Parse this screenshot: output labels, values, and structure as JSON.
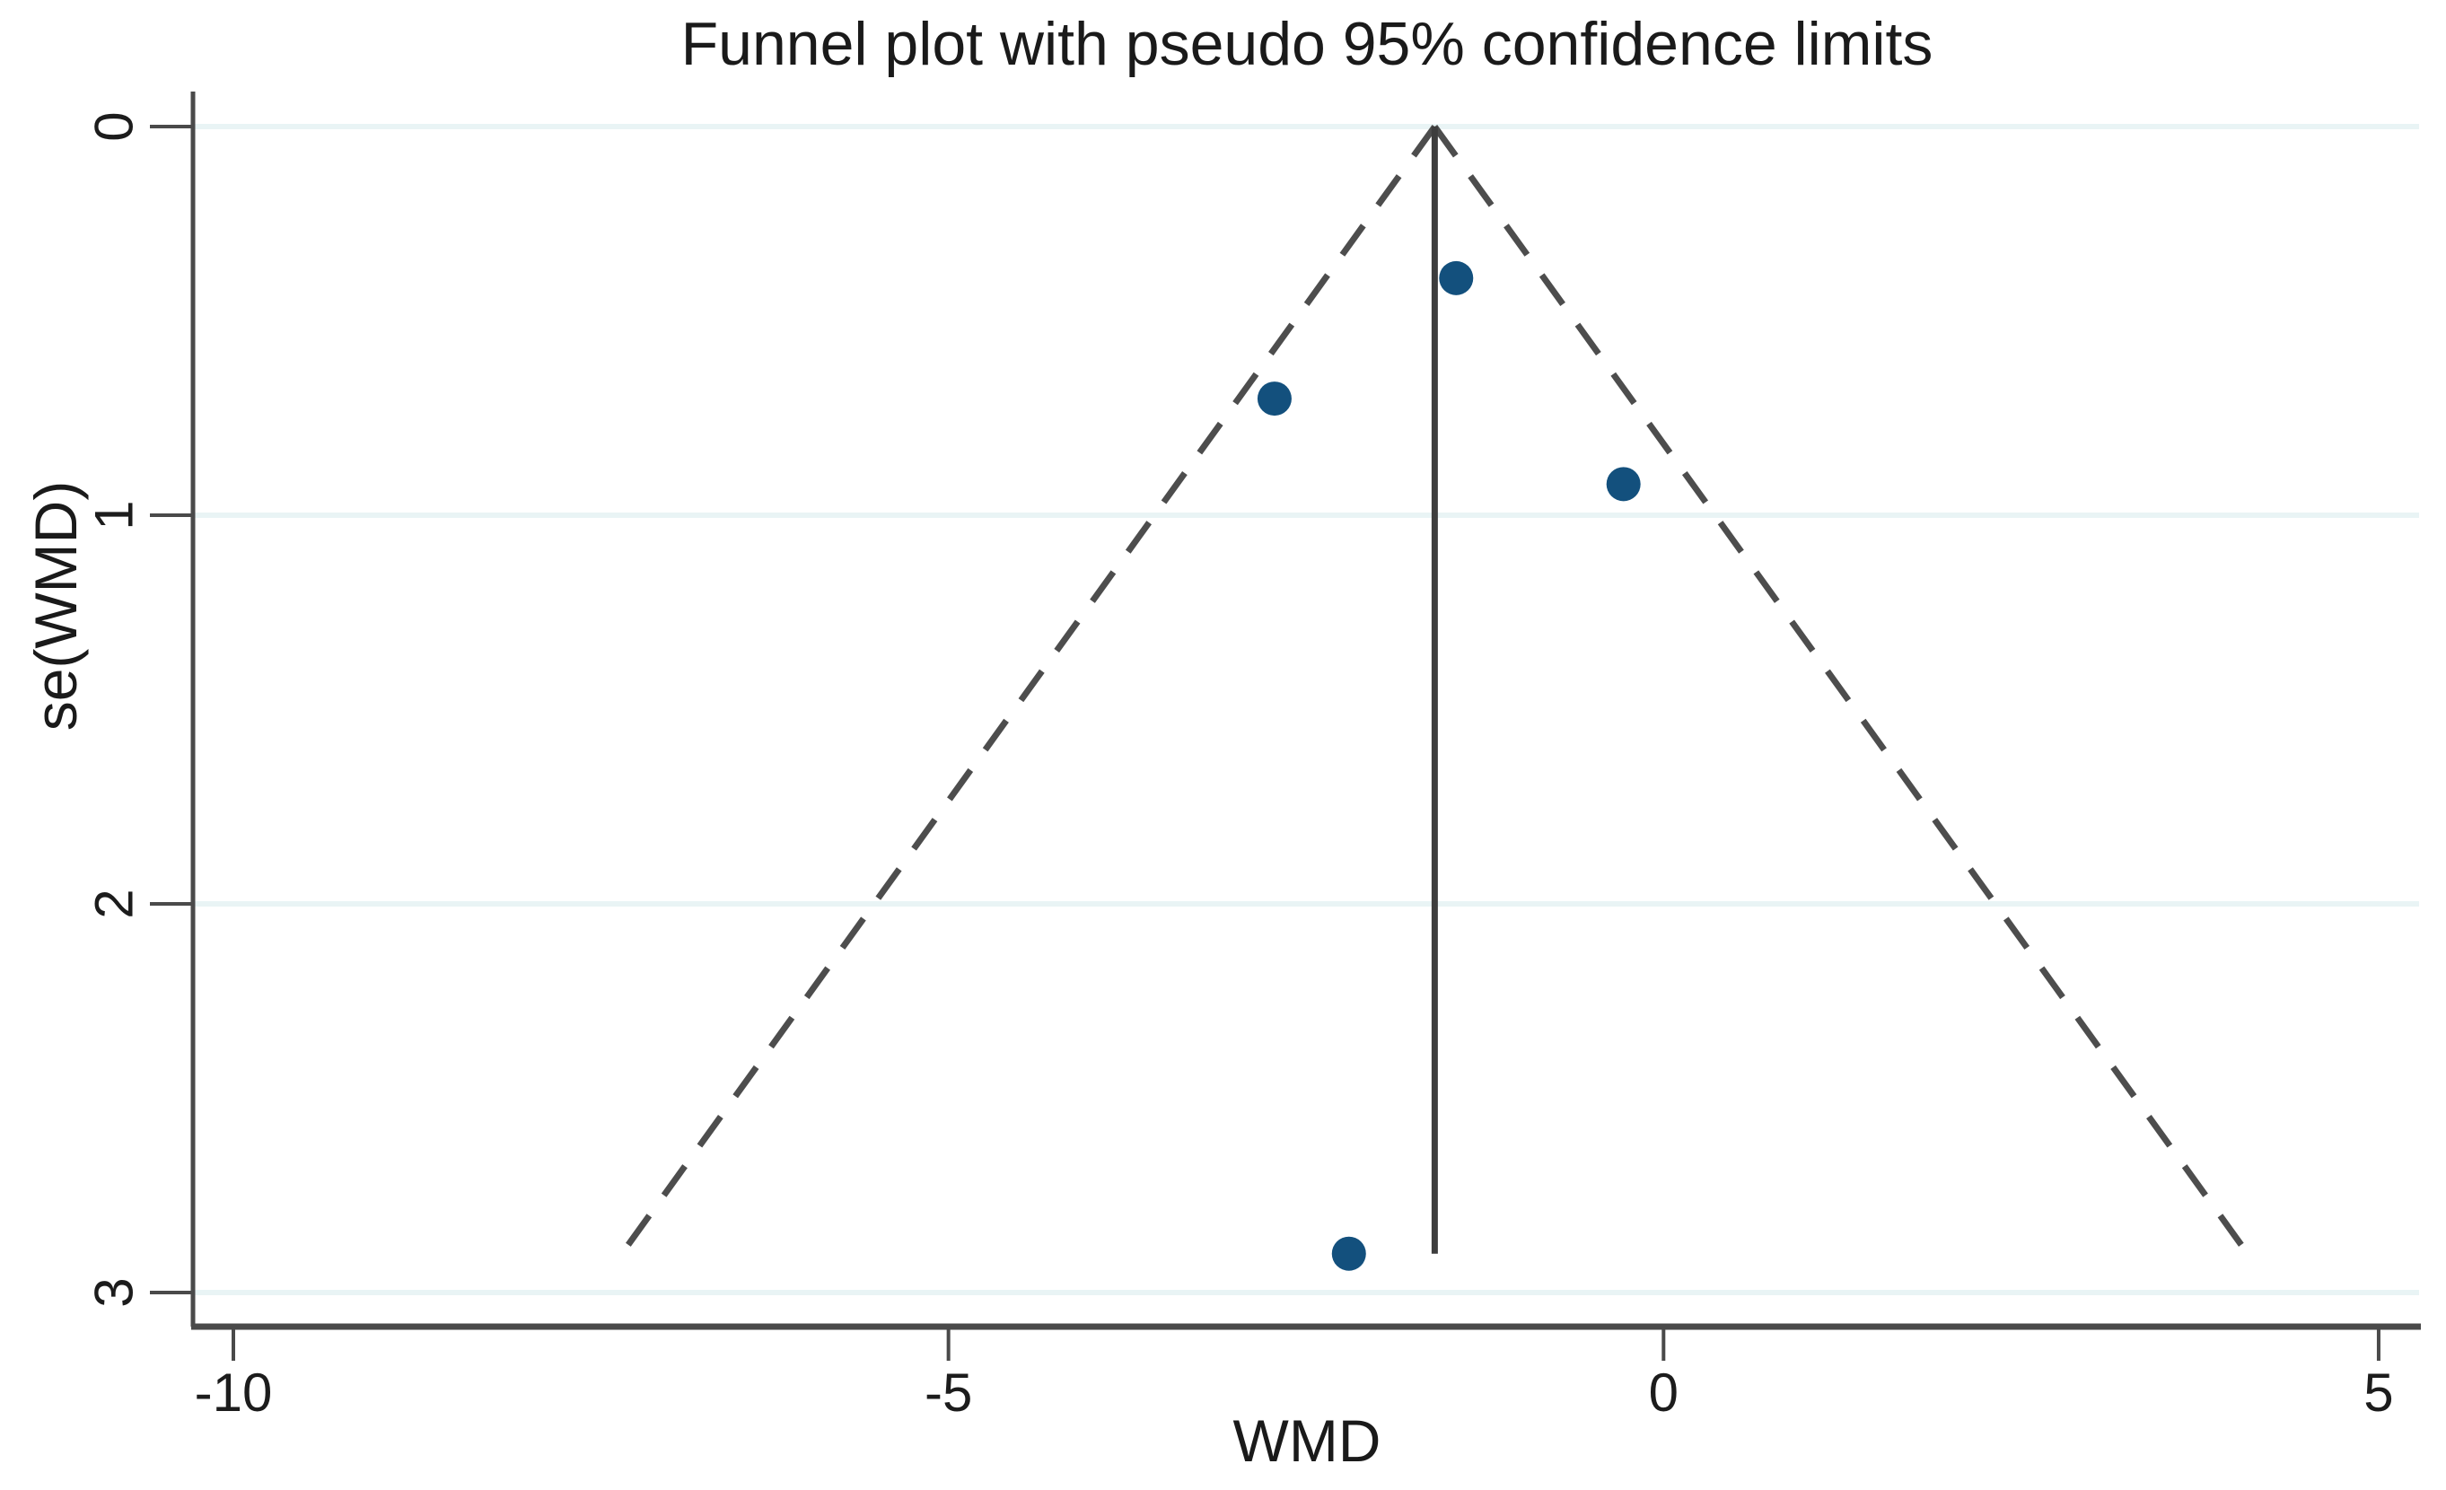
{
  "chart_data": {
    "type": "scatter",
    "subtype": "funnel-plot",
    "title": "Funnel plot with pseudo 95% confidence limits",
    "xlabel": "WMD",
    "ylabel": "se(WMD)",
    "x_ticks": [
      -10,
      -5,
      0,
      5
    ],
    "y_ticks": [
      0,
      1,
      2,
      3
    ],
    "xlim": [
      -10.3,
      5.3
    ],
    "ylim": [
      0,
      3.09
    ],
    "y_axis_inverted": true,
    "grid": "horizontal",
    "legend": "none",
    "points": [
      {
        "wmd": -1.45,
        "se": 0.39
      },
      {
        "wmd": -2.72,
        "se": 0.7
      },
      {
        "wmd": -0.28,
        "se": 0.92
      },
      {
        "wmd": -2.2,
        "se": 2.9
      }
    ],
    "pooled_wmd": -1.6,
    "funnel": {
      "apex_wmd": -1.6,
      "apex_se": 0,
      "max_se": 2.9,
      "ci_multiplier": 1.96,
      "line_style": "dashed"
    },
    "colors": {
      "point": "#13507d",
      "funnel_line": "#4d4d4d",
      "pooled_line": "#3d3d3d",
      "gridline": "#e9f4f5",
      "axis": "#4a4a4a",
      "text": "#1c1c1c",
      "background": "#ffffff"
    }
  }
}
